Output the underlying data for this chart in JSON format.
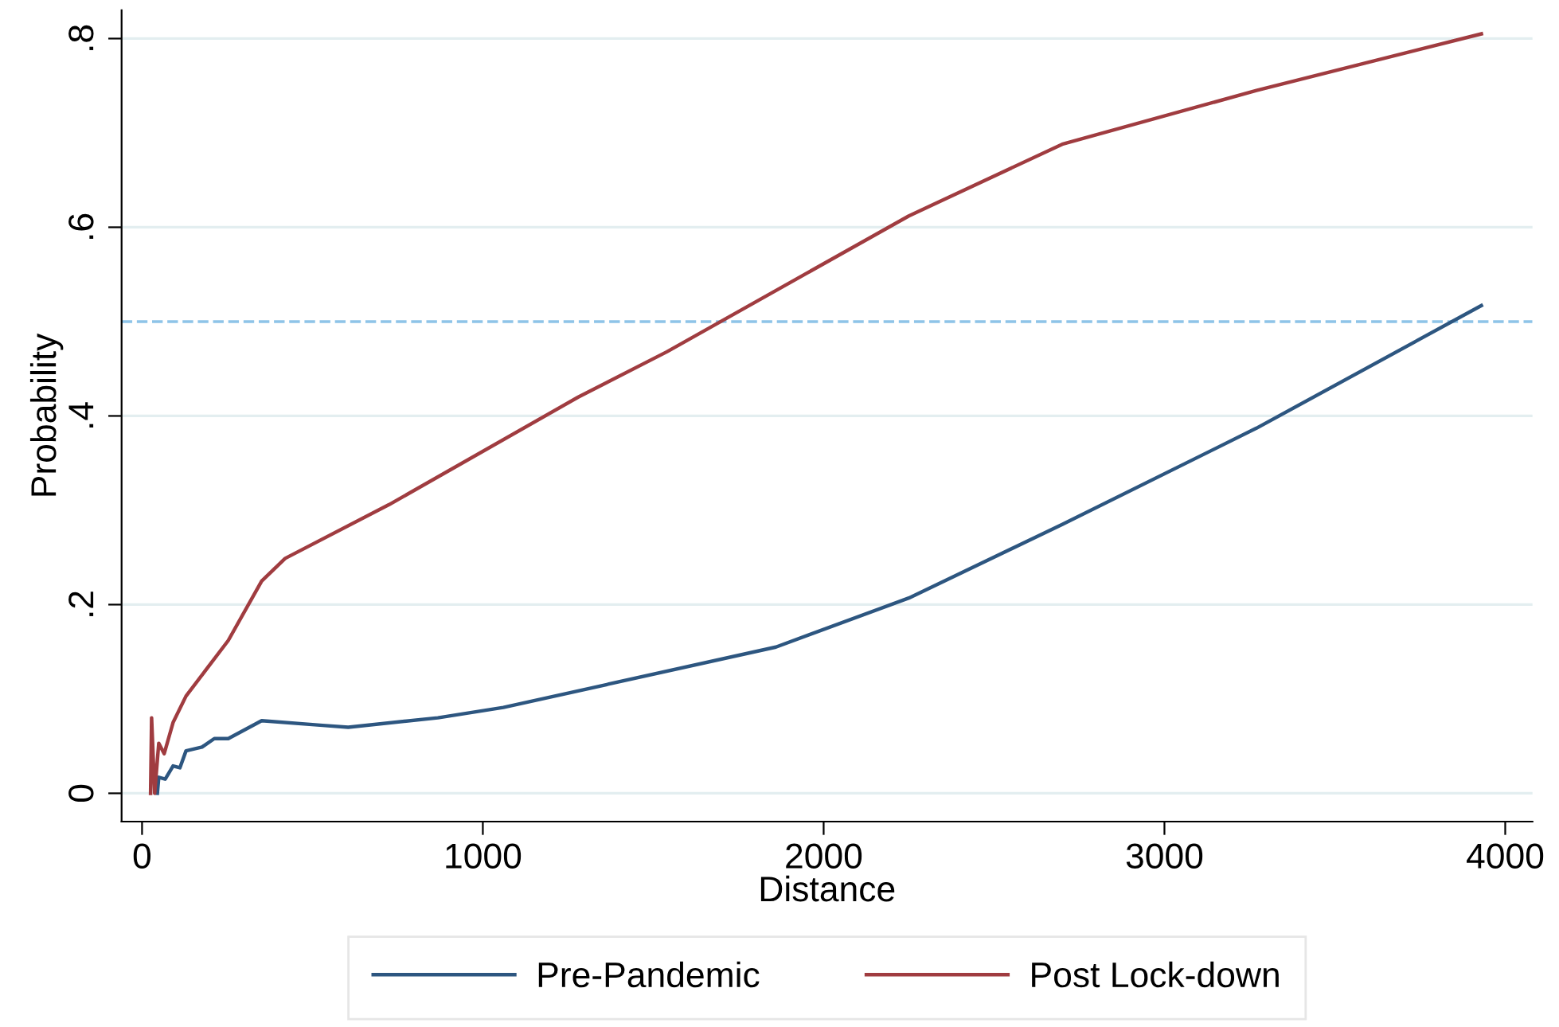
{
  "chart_data": {
    "type": "line",
    "xlabel": "Distance",
    "ylabel": "Probability",
    "xlim": [
      -60,
      4080
    ],
    "ylim": [
      -0.03,
      0.83
    ],
    "xticks": [
      0,
      1000,
      2000,
      3000,
      4000
    ],
    "yticks": [
      {
        "value": 0,
        "label": "0"
      },
      {
        "value": 0.2,
        "label": ".2"
      },
      {
        "value": 0.4,
        "label": ".4"
      },
      {
        "value": 0.6,
        "label": ".6"
      },
      {
        "value": 0.8,
        "label": ".8"
      }
    ],
    "grid": "y",
    "legend": "bottom",
    "line_style": "solid",
    "ref_lines": [
      {
        "axis": "y",
        "value": 0.5,
        "color": "#8ec4e8",
        "line_style": "dashed"
      }
    ],
    "series": [
      {
        "name": "Pre-Pandemic",
        "color": "#2d5680",
        "x": [
          45,
          49,
          68,
          91,
          111,
          129,
          176,
          212,
          253,
          351,
          530,
          605,
          868,
          1060,
          1860,
          2250,
          2700,
          3270,
          3930
        ],
        "values": [
          0,
          0.017,
          0.015,
          0.029,
          0.027,
          0.045,
          0.049,
          0.058,
          0.058,
          0.077,
          0.072,
          0.07,
          0.08,
          0.091,
          0.155,
          0.207,
          0.285,
          0.387,
          0.517
        ]
      },
      {
        "name": "Post Lock-down",
        "color": "#a03c40",
        "x": [
          25,
          28,
          37,
          49,
          65,
          91,
          129,
          253,
          351,
          420,
          725,
          1280,
          1540,
          2250,
          2700,
          3270,
          3930
        ],
        "values": [
          0,
          0.08,
          0,
          0.053,
          0.042,
          0.075,
          0.103,
          0.162,
          0.225,
          0.249,
          0.306,
          0.42,
          0.468,
          0.612,
          0.688,
          0.745,
          0.805
        ]
      }
    ]
  }
}
